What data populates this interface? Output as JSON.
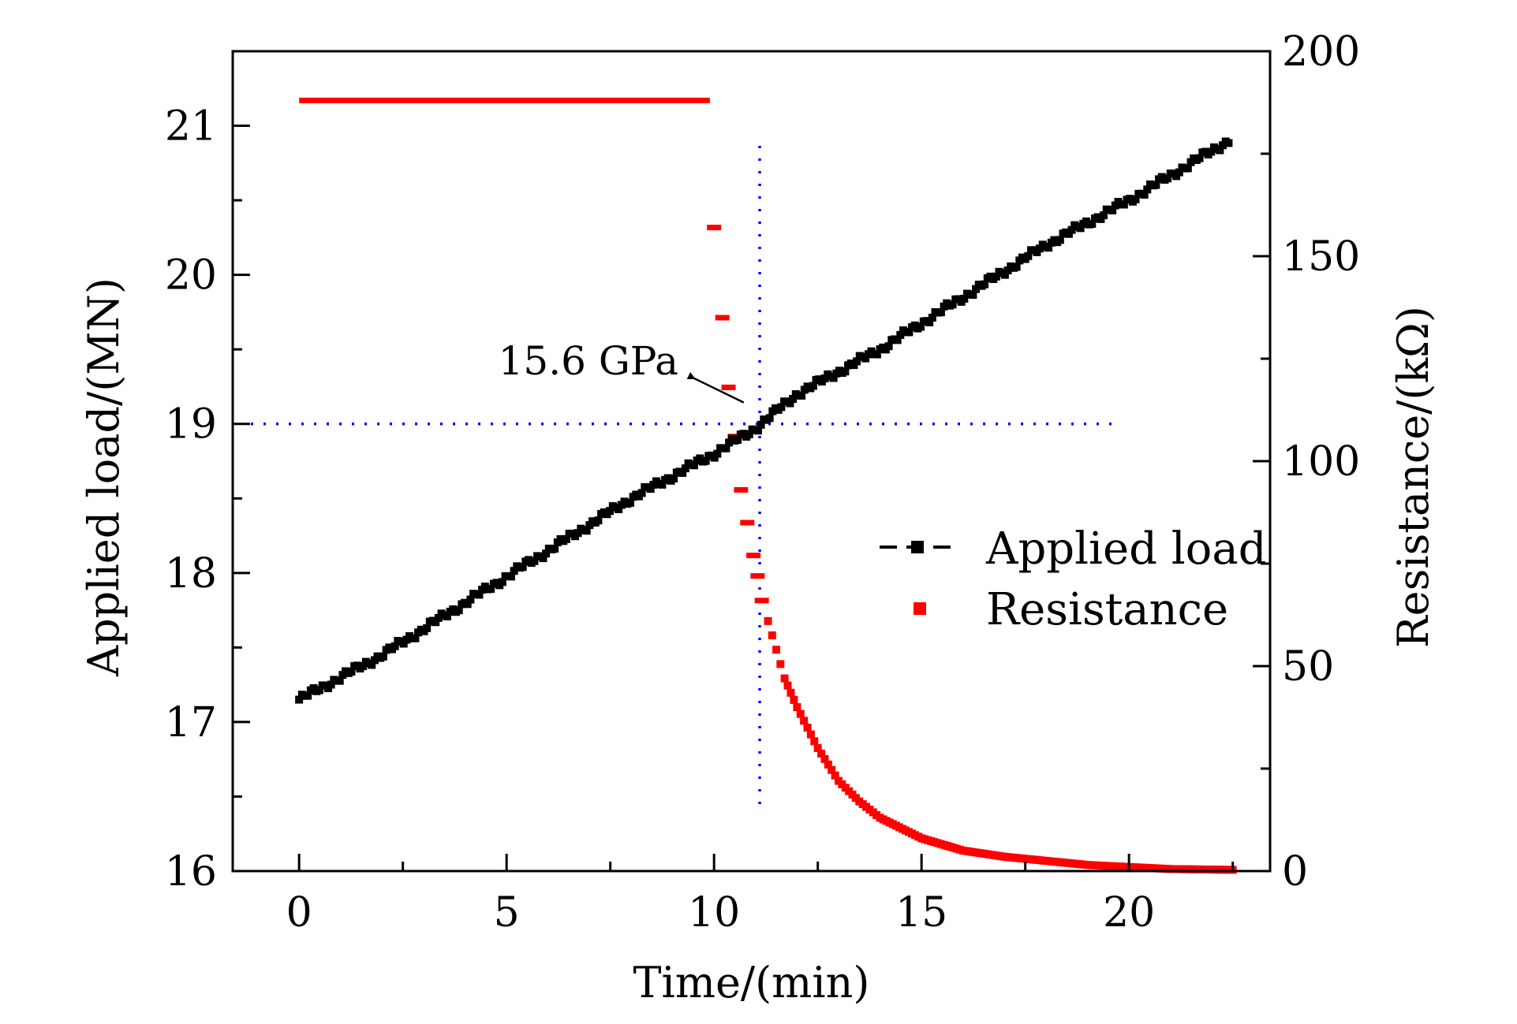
{
  "chart_data": {
    "type": "line",
    "title": "",
    "xlabel": "Time/(min)",
    "ylabel": "Applied load/(MN)",
    "y2label": "Resistance/(kΩ)",
    "xlim": [
      -1.6,
      23.4
    ],
    "ylim": [
      16,
      21.5
    ],
    "y2lim": [
      0,
      200
    ],
    "x_ticks": [
      0,
      5,
      10,
      15,
      20
    ],
    "y_ticks": [
      16,
      17,
      18,
      19,
      20,
      21
    ],
    "y2_ticks": [
      0,
      50,
      100,
      150,
      200
    ],
    "grid": false,
    "legend_position": "center-right",
    "series": [
      {
        "name": "Applied load",
        "axis": "left",
        "color": "#000000",
        "marker": "square",
        "x_start": 0,
        "x_end": 22.4,
        "y_start": 17.15,
        "y_end": 20.9,
        "points": [
          [
            0,
            17.15
          ],
          [
            2,
            17.45
          ],
          [
            4,
            17.8
          ],
          [
            6,
            18.15
          ],
          [
            8,
            18.5
          ],
          [
            10,
            18.8
          ],
          [
            11,
            18.97
          ],
          [
            12,
            19.2
          ],
          [
            14,
            19.5
          ],
          [
            16,
            19.85
          ],
          [
            18,
            20.2
          ],
          [
            20,
            20.5
          ],
          [
            22.4,
            20.9
          ]
        ]
      },
      {
        "name": "Resistance",
        "axis": "right",
        "color": "#ff0000",
        "marker": "square",
        "points": [
          [
            0,
            188
          ],
          [
            2,
            188
          ],
          [
            4,
            188
          ],
          [
            6,
            188
          ],
          [
            8,
            188
          ],
          [
            9.9,
            188
          ],
          [
            10,
            157
          ],
          [
            10.2,
            135
          ],
          [
            10.35,
            118
          ],
          [
            10.5,
            106
          ],
          [
            10.65,
            93
          ],
          [
            10.8,
            85
          ],
          [
            10.95,
            77
          ],
          [
            11.05,
            72
          ],
          [
            11.15,
            66
          ],
          [
            11.3,
            61
          ],
          [
            11.5,
            54
          ],
          [
            11.7,
            47
          ],
          [
            12,
            40
          ],
          [
            12.5,
            30
          ],
          [
            13,
            22
          ],
          [
            13.5,
            17
          ],
          [
            14,
            13
          ],
          [
            15,
            8
          ],
          [
            16,
            5
          ],
          [
            17,
            3.5
          ],
          [
            18,
            2.5
          ],
          [
            19,
            1.5
          ],
          [
            20,
            1
          ],
          [
            21,
            0.5
          ],
          [
            22.5,
            0.3
          ]
        ]
      }
    ],
    "reference_lines": {
      "vertical_x": 11.1,
      "horizontal_y": 19,
      "color": "#0000ff"
    },
    "annotation": {
      "text": "15.6 GPa",
      "arrow_to_x": 11.0,
      "arrow_to_y": 19.08
    }
  }
}
